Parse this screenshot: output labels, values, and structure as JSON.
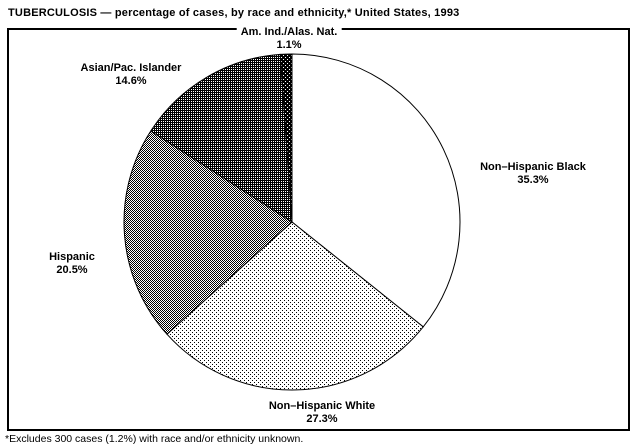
{
  "page": {
    "title": "TUBERCULOSIS — percentage of cases, by race and ethnicity,* United States, 1993",
    "footnote": "*Excludes 300 cases (1.2%) with race and/or ethnicity unknown."
  },
  "colors": {
    "ink": "#000000",
    "paper": "#ffffff"
  },
  "chart_data": {
    "type": "pie",
    "title": "TUBERCULOSIS — percentage of cases, by race and ethnicity, United States, 1993",
    "units": "percent of cases",
    "start_angle_deg": 0,
    "direction": "clockwise",
    "slices": [
      {
        "label": "Non–Hispanic Black",
        "value": 35.3,
        "pct_label": "35.3%",
        "fill": "white"
      },
      {
        "label": "Non–Hispanic White",
        "value": 27.3,
        "pct_label": "27.3%",
        "fill": "dots-light"
      },
      {
        "label": "Hispanic",
        "value": 20.5,
        "pct_label": "20.5%",
        "fill": "checker-50"
      },
      {
        "label": "Asian/Pac. Islander",
        "value": 14.6,
        "pct_label": "14.6%",
        "fill": "dither-75"
      },
      {
        "label": "Am. Ind./Alas. Nat.",
        "value": 1.1,
        "pct_label": "1.1%",
        "fill": "near-black"
      }
    ],
    "footnote": "*Excludes 300 cases (1.2%) with race and/or ethnicity unknown."
  }
}
